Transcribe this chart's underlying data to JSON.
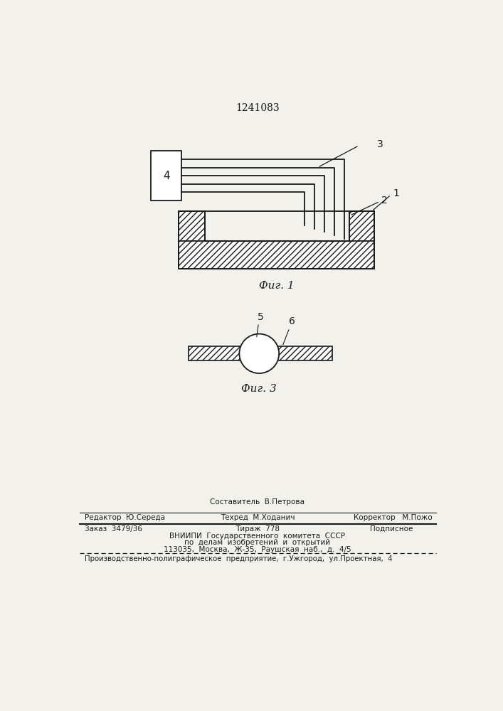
{
  "title": "1241083",
  "fig1_label": "Фиг. 1",
  "fig3_label": "Фиг. 3",
  "label_1": "1",
  "label_2": "2",
  "label_3": "3",
  "label_4": "4",
  "label_5": "5",
  "label_6": "6",
  "bg_color": "#f2f1ec",
  "line_color": "#1a1a1a",
  "footer_sestavitel": "Составитель  В.Петрова",
  "footer_redaktor": "Редактор  Ю.Середа",
  "footer_tehred": "Техред  М.Ходанич",
  "footer_korrektor": "Корректор   М.Пожо",
  "footer_zakaz": "Заказ  3479/36",
  "footer_tirazh": "Тираж  778",
  "footer_podpisnoe": "Подписное",
  "footer_vnipi1": "ВНИИПИ  Государственного  комитета  СССР",
  "footer_vnipi2": "по  делам  изобретений  и  открытий",
  "footer_vnipi3": "113035,  Москва,  Ж-35,  Раушская  наб.,  д.  4/5",
  "footer_last": "Производственно-полиграфическое  предприятие,  г.Ужгород,  ул.Проектная,  4"
}
